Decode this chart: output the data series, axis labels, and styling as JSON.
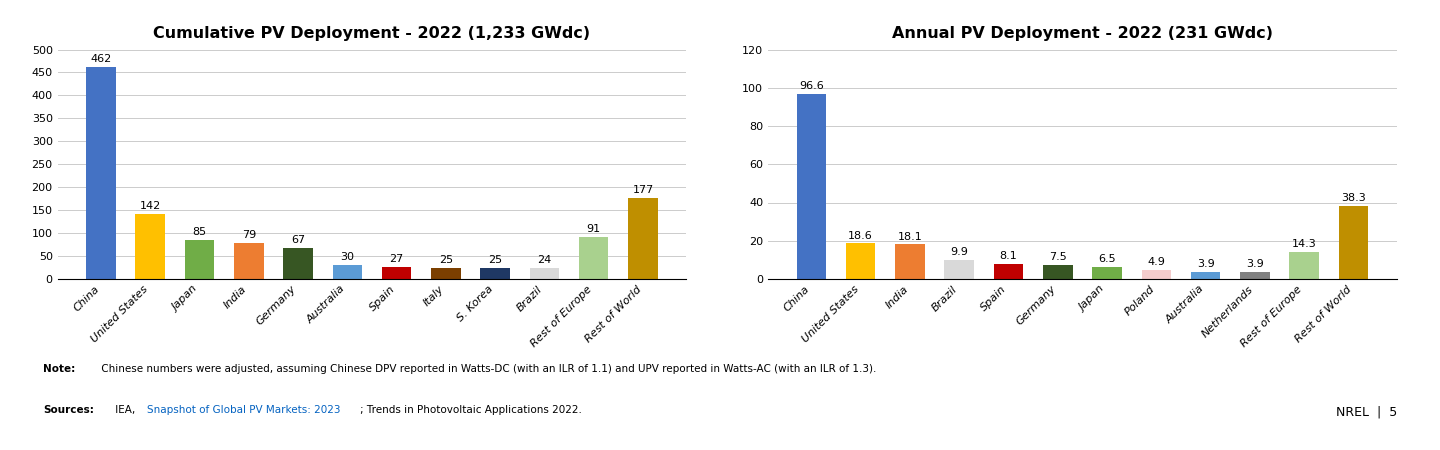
{
  "chart1": {
    "title": "Cumulative PV Deployment - 2022 (1,233 GWdc)",
    "categories": [
      "China",
      "United States",
      "Japan",
      "India",
      "Germany",
      "Australia",
      "Spain",
      "Italy",
      "S. Korea",
      "Brazil",
      "Rest of Europe",
      "Rest of World"
    ],
    "values": [
      462,
      142,
      85,
      79,
      67,
      30,
      27,
      25,
      25,
      24,
      91,
      177
    ],
    "colors": [
      "#4472C4",
      "#FFC000",
      "#70AD47",
      "#ED7D31",
      "#375623",
      "#5B9BD5",
      "#C00000",
      "#7B3F00",
      "#1F3864",
      "#D9D9D9",
      "#A9D18E",
      "#BF8F00"
    ],
    "ylim": [
      0,
      500
    ],
    "yticks": [
      0,
      50,
      100,
      150,
      200,
      250,
      300,
      350,
      400,
      450,
      500
    ]
  },
  "chart2": {
    "title": "Annual PV Deployment - 2022 (231 GWdc)",
    "categories": [
      "China",
      "United States",
      "India",
      "Brazil",
      "Spain",
      "Germany",
      "Japan",
      "Poland",
      "Australia",
      "Netherlands",
      "Rest of Europe",
      "Rest of World"
    ],
    "values": [
      96.6,
      18.6,
      18.1,
      9.9,
      8.1,
      7.5,
      6.5,
      4.9,
      3.9,
      3.9,
      14.3,
      38.3
    ],
    "colors": [
      "#4472C4",
      "#FFC000",
      "#ED7D31",
      "#D9D9D9",
      "#C00000",
      "#375623",
      "#70AD47",
      "#F4CCCC",
      "#5B9BD5",
      "#808080",
      "#A9D18E",
      "#BF8F00"
    ],
    "ylim": [
      0,
      120
    ],
    "yticks": [
      0,
      20,
      40,
      60,
      80,
      100,
      120
    ]
  },
  "note_bold": "Note:",
  "note_text": " Chinese numbers were adjusted, assuming Chinese DPV reported in Watts-DC (with an ILR of 1.1) and UPV reported in Watts-AC (with an ILR of 1.3).",
  "sources_bold": "Sources:",
  "sources_pre": " IEA, ",
  "sources_link": "Snapshot of Global PV Markets: 2023",
  "sources_post": "; Trends in Photovoltaic Applications 2022.",
  "nrel_text": "NREL  |  5",
  "bg_color": "#FFFFFF",
  "bar_width": 0.6,
  "title_fontsize": 11.5,
  "tick_fontsize": 8,
  "annotation_fontsize": 8,
  "note_fontsize": 7.5,
  "nrel_fontsize": 9
}
